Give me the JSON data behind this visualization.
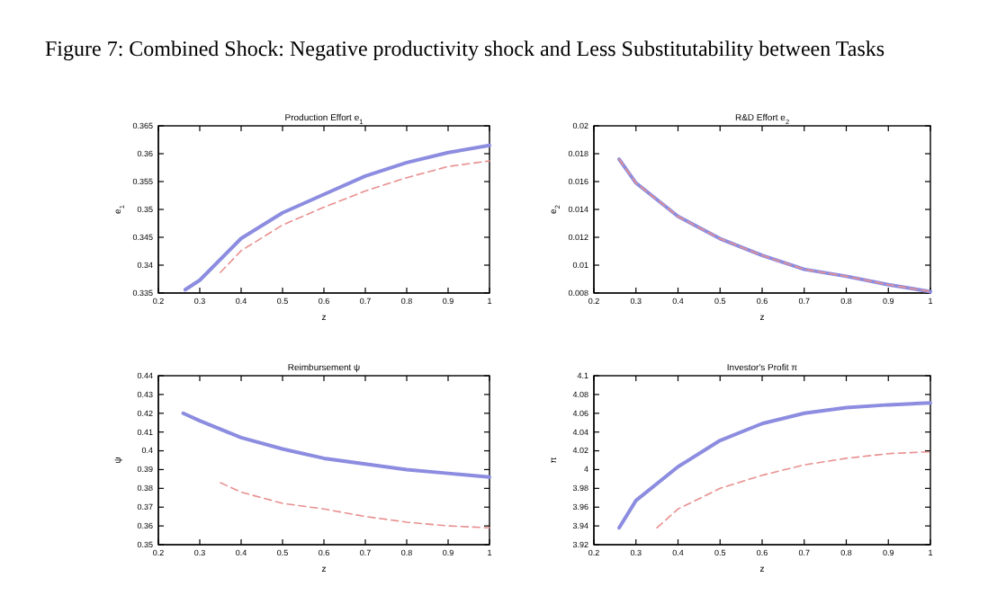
{
  "chart_data": [
    {
      "type": "line",
      "title": "Production Effort e$_{1}$",
      "xlabel": "z",
      "ylabel": "e$_{1}$",
      "annotations": [
        "Figure 7: Combined Shock: Negative productivity shock and Less Substitutability between Tasks"
      ],
      "xlim": [
        0.2,
        1
      ],
      "xticks": [
        0.2,
        0.3,
        0.4,
        0.5,
        0.6,
        0.7,
        0.8,
        0.9,
        1
      ],
      "ylim": [
        0.335,
        0.365
      ],
      "yticks": [
        0.335,
        0.34,
        0.345,
        0.35,
        0.355,
        0.36,
        0.365
      ],
      "series": [
        {
          "color": "#8c8ce0",
          "line_style": "solid",
          "x": [
            0.265,
            0.3,
            0.4,
            0.5,
            0.6,
            0.7,
            0.8,
            0.9,
            1
          ],
          "values": [
            0.3356,
            0.3373,
            0.3448,
            0.3494,
            0.3527,
            0.356,
            0.3584,
            0.3602,
            0.3615
          ]
        },
        {
          "color": "#e89090",
          "line_style": "dashed",
          "x": [
            0.35,
            0.4,
            0.5,
            0.6,
            0.7,
            0.8,
            0.9,
            1
          ],
          "values": [
            0.3387,
            0.3426,
            0.3472,
            0.3504,
            0.3533,
            0.3557,
            0.3577,
            0.3587
          ]
        }
      ]
    },
    {
      "type": "line",
      "title": "R&D Effort e$_{2}$",
      "xlabel": "z",
      "ylabel": "e$_{2}$",
      "xlim": [
        0.2,
        1
      ],
      "xticks": [
        0.2,
        0.3,
        0.4,
        0.5,
        0.6,
        0.7,
        0.8,
        0.9,
        1
      ],
      "ylim": [
        0.008,
        0.02
      ],
      "yticks": [
        0.008,
        0.01,
        0.012,
        0.014,
        0.016,
        0.018,
        0.02
      ],
      "series": [
        {
          "color": "#8c8ce0",
          "line_style": "solid",
          "x": [
            0.26,
            0.3,
            0.4,
            0.5,
            0.6,
            0.7,
            0.8,
            0.9,
            1
          ],
          "values": [
            0.0176,
            0.0159,
            0.0135,
            0.0119,
            0.0107,
            0.0097,
            0.0092,
            0.0086,
            0.0081
          ]
        },
        {
          "color": "#e89090",
          "line_style": "dashed",
          "x": [
            0.26,
            0.3,
            0.4,
            0.5,
            0.6,
            0.7,
            0.8,
            0.9,
            1
          ],
          "values": [
            0.0176,
            0.0159,
            0.0135,
            0.0119,
            0.0107,
            0.0097,
            0.0092,
            0.0086,
            0.0081
          ]
        }
      ]
    },
    {
      "type": "line",
      "title": "Reimbursement ψ",
      "xlabel": "z",
      "ylabel": "ψ",
      "xlim": [
        0.2,
        1
      ],
      "xticks": [
        0.2,
        0.3,
        0.4,
        0.5,
        0.6,
        0.7,
        0.8,
        0.9,
        1
      ],
      "ylim": [
        0.35,
        0.44
      ],
      "yticks": [
        0.35,
        0.36,
        0.37,
        0.38,
        0.39,
        0.4,
        0.41,
        0.42,
        0.43,
        0.44
      ],
      "series": [
        {
          "color": "#8c8ce0",
          "line_style": "solid",
          "x": [
            0.26,
            0.3,
            0.4,
            0.5,
            0.6,
            0.7,
            0.8,
            0.9,
            1
          ],
          "values": [
            0.42,
            0.416,
            0.407,
            0.401,
            0.396,
            0.393,
            0.39,
            0.388,
            0.386
          ]
        },
        {
          "color": "#e89090",
          "line_style": "dashed",
          "x": [
            0.35,
            0.4,
            0.5,
            0.6,
            0.7,
            0.8,
            0.9,
            1
          ],
          "values": [
            0.383,
            0.378,
            0.372,
            0.369,
            0.365,
            0.362,
            0.36,
            0.359
          ]
        }
      ]
    },
    {
      "type": "line",
      "title": "Investor's Profit π",
      "xlabel": "z",
      "ylabel": "π",
      "xlim": [
        0.2,
        1
      ],
      "xticks": [
        0.2,
        0.3,
        0.4,
        0.5,
        0.6,
        0.7,
        0.8,
        0.9,
        1
      ],
      "ylim": [
        3.92,
        4.1
      ],
      "yticks": [
        3.92,
        3.94,
        3.96,
        3.98,
        4,
        4.02,
        4.04,
        4.06,
        4.08,
        4.1
      ],
      "series": [
        {
          "color": "#8c8ce0",
          "line_style": "solid",
          "x": [
            0.26,
            0.3,
            0.4,
            0.5,
            0.6,
            0.7,
            0.8,
            0.9,
            1
          ],
          "values": [
            3.938,
            3.967,
            4.003,
            4.031,
            4.049,
            4.06,
            4.066,
            4.069,
            4.071
          ]
        },
        {
          "color": "#e89090",
          "line_style": "dashed",
          "x": [
            0.35,
            0.4,
            0.5,
            0.6,
            0.7,
            0.8,
            0.9,
            1
          ],
          "values": [
            3.938,
            3.958,
            3.98,
            3.994,
            4.005,
            4.012,
            4.017,
            4.019
          ]
        }
      ]
    }
  ]
}
